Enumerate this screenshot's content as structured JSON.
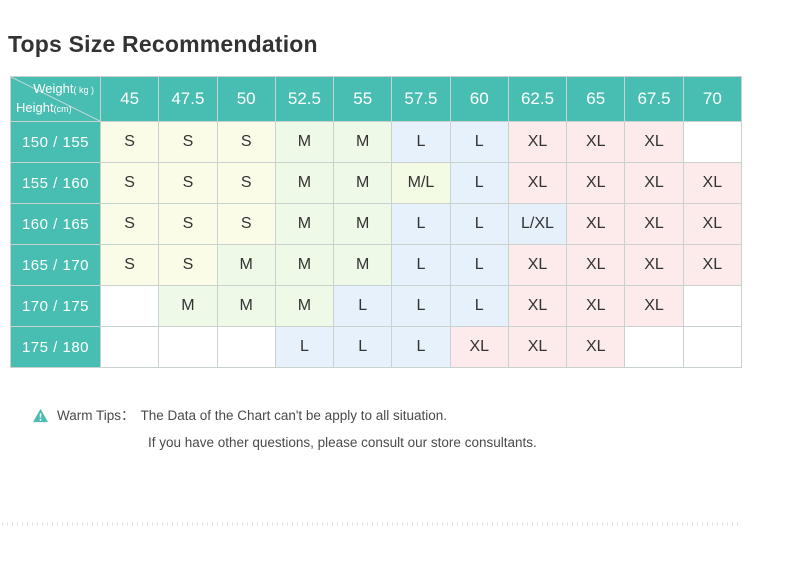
{
  "title": "Tops Size Recommendation",
  "theme": {
    "teal": "#48bdb1",
    "grid_line": "#c9d2cf",
    "diagonal_line": "#cdd9d6",
    "cell_text": "#333333",
    "tips_text": "#4a4a4a"
  },
  "size_colors": {
    "S": "#fbfce8",
    "M": "#eef9e8",
    "M/L": "#f3fbe5",
    "L": "#e7f1fb",
    "L/XL": "#e5f0fa",
    "XL": "#fcebea",
    "": "#ffffff"
  },
  "chart_data": {
    "type": "table",
    "title": "Tops Size Recommendation",
    "corner": {
      "top_label": "Weight",
      "top_unit": "( kg )",
      "bottom_label": "Height",
      "bottom_unit": "(cm)"
    },
    "weights": [
      "45",
      "47.5",
      "50",
      "52.5",
      "55",
      "57.5",
      "60",
      "62.5",
      "65",
      "67.5",
      "70"
    ],
    "heights": [
      "150 / 155",
      "155 / 160",
      "160 / 165",
      "165 / 170",
      "170 / 175",
      "175 / 180"
    ],
    "cells": [
      [
        "S",
        "S",
        "S",
        "M",
        "M",
        "L",
        "L",
        "XL",
        "XL",
        "XL",
        ""
      ],
      [
        "S",
        "S",
        "S",
        "M",
        "M",
        "M/L",
        "L",
        "XL",
        "XL",
        "XL",
        "XL"
      ],
      [
        "S",
        "S",
        "S",
        "M",
        "M",
        "L",
        "L",
        "L/XL",
        "XL",
        "XL",
        "XL"
      ],
      [
        "S",
        "S",
        "M",
        "M",
        "M",
        "L",
        "L",
        "XL",
        "XL",
        "XL",
        "XL"
      ],
      [
        "",
        "M",
        "M",
        "M",
        "L",
        "L",
        "L",
        "XL",
        "XL",
        "XL",
        ""
      ],
      [
        "",
        "",
        "",
        "L",
        "L",
        "L",
        "XL",
        "XL",
        "XL",
        "",
        ""
      ]
    ]
  },
  "tips": {
    "icon": "warning-triangle-icon",
    "label": "Warm Tips：",
    "line1": "The Data of the Chart can't be apply to all situation.",
    "line2": "If you have other questions, please consult our store consultants."
  }
}
